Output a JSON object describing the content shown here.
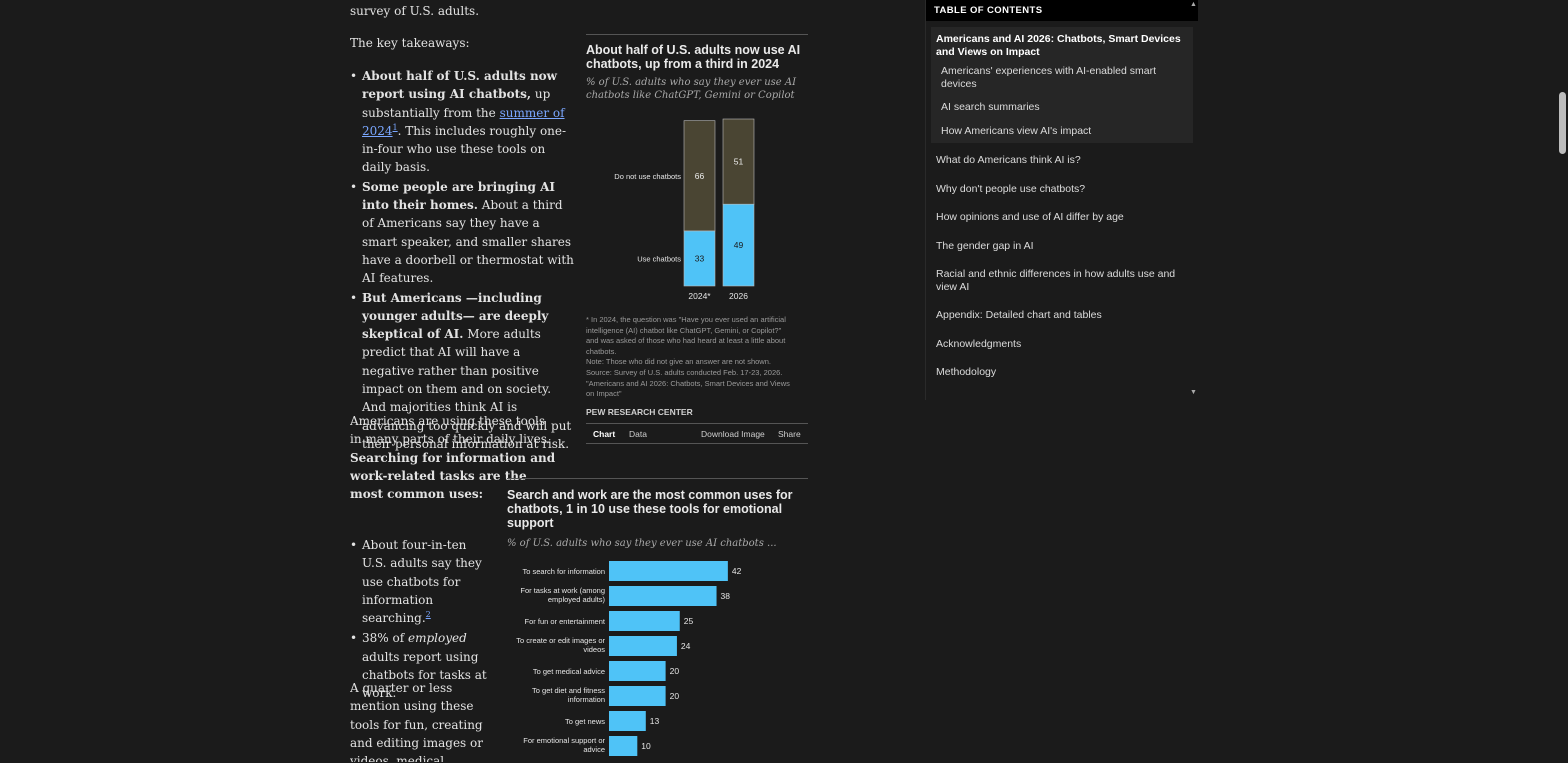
{
  "article": {
    "p0": "survey of U.S. adults.",
    "p1": "The key takeaways:",
    "b1": {
      "bold": "About half of U.S. adults now report using AI chatbots,",
      "t1": " up substantially from the ",
      "link": "summer of 2024",
      "sup": "1",
      "t2": ". This includes roughly one-in-four who use these tools on daily basis."
    },
    "b2": {
      "bold": "Some people are bringing AI into their homes.",
      "t1": " About a third of Americans say they have a smart speaker, and smaller shares have a doorbell or thermostat with AI features."
    },
    "b3": {
      "bold": "But Americans —including younger adults— are deeply skeptical of AI.",
      "t1": " More adults predict that AI will have a negative rather than positive impact on them and on society. And majorities think AI is advancing too quickly and will put their personal information at risk."
    },
    "p2": {
      "t1": "Americans are using these tools in many parts of their daily lives. ",
      "bold": "Searching for information and work-related tasks are the most common uses:"
    },
    "b4": {
      "t1": "About four-in-ten U.S. adults say they use chatbots for information searching.",
      "sup": "2"
    },
    "b5": {
      "t1": "38% of ",
      "em": "employed",
      "t2": " adults report using chatbots for tasks at work."
    },
    "p3": "A quarter or less mention using these tools for fun, creating and editing images or videos, medical advice, and diet and"
  },
  "chart1": {
    "title": "About half of U.S. adults now use AI chatbots, up from a third in 2024",
    "subtitle": "% of U.S. adults who say they ever use AI chatbots like ChatGPT, Gemini or Copilot",
    "note_lines": [
      "* In 2024, the question was \"Have you ever used an artificial",
      "intelligence (AI) chatbot like ChatGPT, Gemini, or Copilot?\"",
      "and was asked of those who had heard at least a little about",
      "chatbots.",
      "Note: Those who did not give an answer are not shown.",
      "Source: Survey of U.S. adults conducted Feb. 17-23, 2026.",
      "\"Americans and AI 2026: Chatbots, Smart Devices and Views",
      "on Impact\""
    ],
    "brand": "PEW RESEARCH CENTER",
    "tabs": {
      "chart": "Chart",
      "data": "Data",
      "download": "Download Image",
      "share": "Share"
    }
  },
  "chart2": {
    "title": "Search and work are the most common uses for chatbots, 1 in 10 use these tools for emotional support",
    "subtitle": "% of U.S. adults who say they ever use AI chatbots ..."
  },
  "chart_data": [
    {
      "type": "bar",
      "stacked": true,
      "categories": [
        "2024*",
        "2026"
      ],
      "series": [
        {
          "name": "Use chatbots",
          "values": [
            33,
            49
          ],
          "color": "#4fc3f7"
        },
        {
          "name": "Do not use chatbots",
          "values": [
            66,
            51
          ],
          "color": "#4a4533"
        }
      ],
      "ylim": [
        0,
        100
      ]
    },
    {
      "type": "bar",
      "orientation": "horizontal",
      "categories": [
        "To search for information",
        "For tasks at work (among employed adults)",
        "For fun or entertainment",
        "To create or edit images or videos",
        "To get medical advice",
        "To get diet and fitness information",
        "To get news",
        "For emotional support or advice"
      ],
      "label_lines": [
        [
          "To search for information"
        ],
        [
          "For tasks at work (among",
          "employed adults)"
        ],
        [
          "For fun or entertainment"
        ],
        [
          "To create or edit images or",
          "videos"
        ],
        [
          "To get medical advice"
        ],
        [
          "To get diet and fitness",
          "information"
        ],
        [
          "To get news"
        ],
        [
          "For emotional support or",
          "advice"
        ]
      ],
      "values": [
        42,
        38,
        25,
        24,
        20,
        20,
        13,
        10
      ],
      "color": "#4fc3f7"
    }
  ],
  "toc": {
    "header": "TABLE OF CONTENTS",
    "current": "Americans and AI 2026: Chatbots, Smart Devices and Views on Impact",
    "subitems": [
      "Americans' experiences with AI-enabled smart devices",
      "AI search summaries",
      "How Americans view AI's impact"
    ],
    "items": [
      "What do Americans think AI is?",
      "Why don't people use chatbots?",
      "How opinions and use of AI differ by age",
      "The gender gap in AI",
      "Racial and ethnic differences in how adults use and view AI",
      "Appendix: Detailed chart and tables",
      "Acknowledgments",
      "Methodology"
    ]
  }
}
